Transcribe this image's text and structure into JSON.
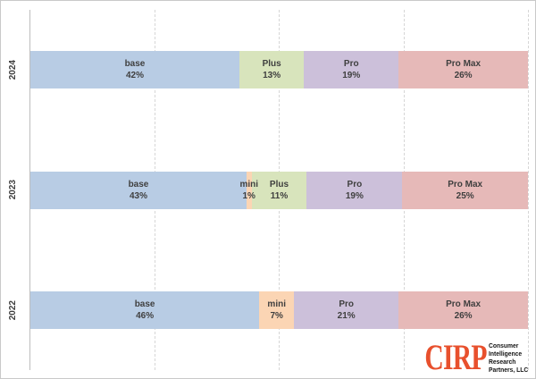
{
  "chart_data": {
    "type": "bar",
    "variant": "horizontal_stacked_100pct",
    "title": "",
    "categories": [
      "2024",
      "2023",
      "2022"
    ],
    "series_order": [
      "base",
      "mini",
      "Plus",
      "Pro",
      "Pro Max"
    ],
    "series_colors": {
      "base": "#B8CCE4",
      "mini": "#FBD5B4",
      "Plus": "#D8E4BC",
      "Pro": "#CCC0DA",
      "Pro Max": "#E6B9B8"
    },
    "rows": [
      {
        "category": "2024",
        "segments": [
          {
            "label": "base",
            "value": 42
          },
          {
            "label": "Plus",
            "value": 13
          },
          {
            "label": "Pro",
            "value": 19
          },
          {
            "label": "Pro Max",
            "value": 26
          }
        ]
      },
      {
        "category": "2023",
        "segments": [
          {
            "label": "base",
            "value": 43
          },
          {
            "label": "mini",
            "value": 1
          },
          {
            "label": "Plus",
            "value": 11
          },
          {
            "label": "Pro",
            "value": 19
          },
          {
            "label": "Pro Max",
            "value": 25
          }
        ]
      },
      {
        "category": "2022",
        "segments": [
          {
            "label": "base",
            "value": 46
          },
          {
            "label": "mini",
            "value": 7
          },
          {
            "label": "Pro",
            "value": 21
          },
          {
            "label": "Pro Max",
            "value": 26
          }
        ]
      }
    ],
    "value_suffix": "%",
    "xlim": [
      0,
      100
    ],
    "gridlines": [
      25,
      50,
      75,
      100
    ],
    "grid_style": "dashed",
    "legend": "none",
    "label_color": "#3F3F3F"
  },
  "logo": {
    "abbr": "CIRP",
    "color": "#E8502D",
    "lines": [
      "Consumer",
      "Intelligence",
      "Research",
      "Partners, LLC"
    ]
  }
}
